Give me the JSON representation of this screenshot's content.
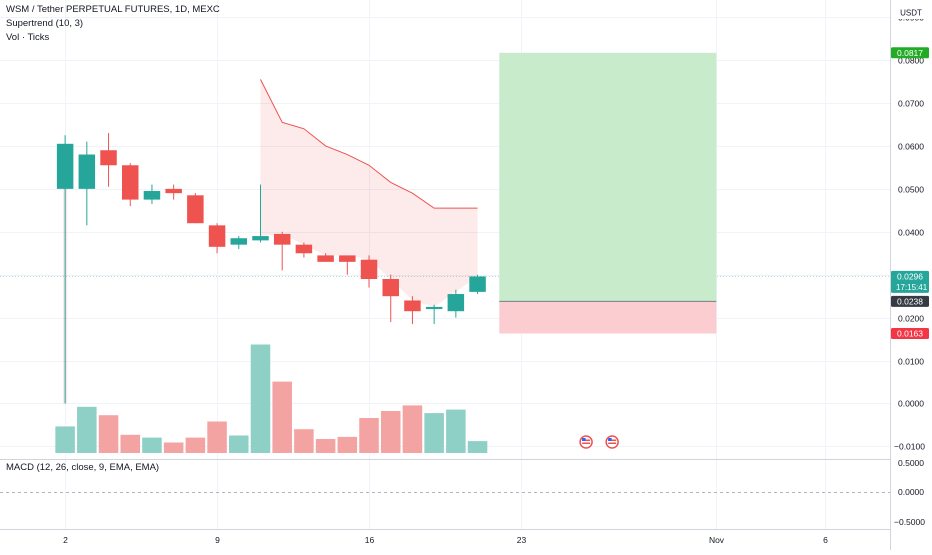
{
  "header": {
    "symbol_line": "WSM / Tether PERPETUAL FUTURES, 1D, MEXC",
    "supertrend_label": "Supertrend (10, 3)",
    "volume_label": "Vol · Ticks",
    "currency_button": "USDT"
  },
  "macd": {
    "label": "MACD (12, 26, close, 9, EMA, EMA)",
    "axis_ticks": [
      "0.5000",
      "0.0000",
      "−0.5000"
    ]
  },
  "price_axis": {
    "ticks": [
      "0.0900",
      "0.0800",
      "0.0700",
      "0.0600",
      "0.0500",
      "0.0400",
      "0.0300",
      "0.0200",
      "0.0100",
      "0.0000",
      "−0.0100"
    ],
    "tick_values": [
      0.09,
      0.08,
      0.07,
      0.06,
      0.05,
      0.04,
      0.03,
      0.02,
      0.01,
      0.0,
      -0.01
    ],
    "badges": {
      "target": "0.0817",
      "last": "0.0296",
      "countdown": "17:15:41",
      "entry": "0.0238",
      "stop": "0.0163"
    }
  },
  "time_axis": {
    "labels": [
      "2",
      "9",
      "16",
      "23",
      "Nov",
      "6"
    ],
    "label_positions": [
      0,
      7,
      14,
      21,
      30,
      35
    ]
  },
  "colors": {
    "up": "#26a69a",
    "down": "#ef5350",
    "vol_up": "#8fd0c6",
    "vol_down": "#f4a3a3",
    "target_badge": "#22ab24",
    "stop_badge": "#f23645",
    "entry_badge": "#363a45",
    "last_badge": "#26a69a",
    "profit_zone": "#c8ebcb",
    "loss_zone": "#fccdd0"
  },
  "icons": {
    "events": "us-flag-event-icon"
  },
  "chart_data": {
    "type": "candlestick",
    "y_range": [
      -0.012,
      0.094
    ],
    "x_day_range": [
      -3,
      38
    ],
    "candles": [
      {
        "day": 0,
        "o": 0.05,
        "h": 0.0625,
        "l": 0.0,
        "c": 0.0605
      },
      {
        "day": 1,
        "o": 0.05,
        "h": 0.061,
        "l": 0.0415,
        "c": 0.058
      },
      {
        "day": 2,
        "o": 0.059,
        "h": 0.063,
        "l": 0.0505,
        "c": 0.0555
      },
      {
        "day": 3,
        "o": 0.0555,
        "h": 0.056,
        "l": 0.046,
        "c": 0.0475
      },
      {
        "day": 4,
        "o": 0.0475,
        "h": 0.051,
        "l": 0.0465,
        "c": 0.0495
      },
      {
        "day": 5,
        "o": 0.05,
        "h": 0.051,
        "l": 0.0475,
        "c": 0.049
      },
      {
        "day": 6,
        "o": 0.0485,
        "h": 0.049,
        "l": 0.042,
        "c": 0.042
      },
      {
        "day": 7,
        "o": 0.0415,
        "h": 0.042,
        "l": 0.035,
        "c": 0.0365
      },
      {
        "day": 8,
        "o": 0.037,
        "h": 0.039,
        "l": 0.036,
        "c": 0.0385
      },
      {
        "day": 9,
        "o": 0.038,
        "h": 0.051,
        "l": 0.0375,
        "c": 0.039
      },
      {
        "day": 10,
        "o": 0.0395,
        "h": 0.04,
        "l": 0.031,
        "c": 0.037
      },
      {
        "day": 11,
        "o": 0.037,
        "h": 0.0375,
        "l": 0.034,
        "c": 0.035
      },
      {
        "day": 12,
        "o": 0.0345,
        "h": 0.035,
        "l": 0.033,
        "c": 0.033
      },
      {
        "day": 13,
        "o": 0.0345,
        "h": 0.0345,
        "l": 0.03,
        "c": 0.033
      },
      {
        "day": 14,
        "o": 0.0335,
        "h": 0.0345,
        "l": 0.027,
        "c": 0.029
      },
      {
        "day": 15,
        "o": 0.029,
        "h": 0.03,
        "l": 0.019,
        "c": 0.025
      },
      {
        "day": 16,
        "o": 0.024,
        "h": 0.025,
        "l": 0.0185,
        "c": 0.0215
      },
      {
        "day": 17,
        "o": 0.022,
        "h": 0.023,
        "l": 0.0185,
        "c": 0.0225
      },
      {
        "day": 18,
        "o": 0.0215,
        "h": 0.0265,
        "l": 0.02,
        "c": 0.0255
      },
      {
        "day": 19,
        "o": 0.026,
        "h": 0.03,
        "l": 0.0255,
        "c": 0.0296
      }
    ],
    "supertrend": [
      {
        "day": 9,
        "v": 0.0755
      },
      {
        "day": 10,
        "v": 0.0655
      },
      {
        "day": 11,
        "v": 0.064
      },
      {
        "day": 12,
        "v": 0.06
      },
      {
        "day": 13,
        "v": 0.058
      },
      {
        "day": 14,
        "v": 0.0555
      },
      {
        "day": 15,
        "v": 0.0515
      },
      {
        "day": 16,
        "v": 0.049
      },
      {
        "day": 17,
        "v": 0.0455
      },
      {
        "day": 19,
        "v": 0.0455
      }
    ],
    "volume_relative": [
      0.38,
      0.66,
      0.54,
      0.26,
      0.22,
      0.15,
      0.22,
      0.45,
      0.25,
      1.55,
      1.02,
      0.34,
      0.2,
      0.23,
      0.5,
      0.6,
      0.68,
      0.57,
      0.62,
      0.17
    ],
    "position": {
      "start_day": 20.0,
      "end_day": 30.0,
      "entry": 0.0238,
      "target": 0.0817,
      "stop": 0.0163
    },
    "events_days": [
      24.0,
      25.2
    ]
  }
}
